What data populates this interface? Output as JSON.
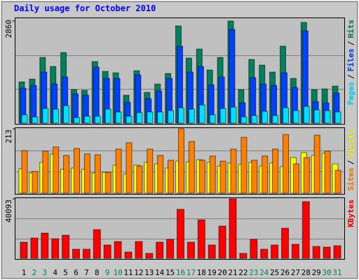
{
  "chart_data": [
    {
      "type": "bar",
      "title": "Daily usage for October 2010",
      "categories": [
        "1",
        "2",
        "3",
        "4",
        "5",
        "6",
        "7",
        "8",
        "9",
        "10",
        "11",
        "12",
        "13",
        "14",
        "15",
        "16",
        "17",
        "18",
        "19",
        "20",
        "21",
        "22",
        "23",
        "24",
        "25",
        "26",
        "27",
        "28",
        "29",
        "30",
        "31"
      ],
      "category_colors": [
        "#000000",
        "#00805c",
        "#00805c",
        "#000000",
        "#000000",
        "#000000",
        "#000000",
        "#000000",
        "#00805c",
        "#00805c",
        "#000000",
        "#000000",
        "#000000",
        "#000000",
        "#000000",
        "#00805c",
        "#00805c",
        "#000000",
        "#000000",
        "#000000",
        "#000000",
        "#000000",
        "#00805c",
        "#00805c",
        "#000000",
        "#000000",
        "#000000",
        "#000000",
        "#000000",
        "#00805c",
        "#00805c"
      ],
      "legend_separator": "/",
      "series": [
        {
          "name": "Hits",
          "color": "#00805c",
          "values": [
            1156,
            1234,
            1841,
            1587,
            1978,
            940,
            921,
            1724,
            1450,
            1410,
            784,
            1469,
            862,
            1097,
            1391,
            2723,
            1822,
            2076,
            1489,
            1841,
            2860,
            940,
            1783,
            1626,
            1430,
            2155,
            1254,
            2821,
            940,
            960,
            1038
          ]
        },
        {
          "name": "Files",
          "color": "#0040ff",
          "values": [
            979,
            1058,
            1430,
            1097,
            1293,
            823,
            784,
            1567,
            1254,
            1254,
            588,
            1352,
            686,
            901,
            1254,
            2155,
            1430,
            1587,
            1077,
            1293,
            2625,
            568,
            1273,
            1097,
            1058,
            1410,
            999,
            2586,
            607,
            568,
            842
          ]
        },
        {
          "name": "Pages",
          "color": "#00e0ff",
          "values": [
            235,
            176,
            411,
            392,
            490,
            157,
            196,
            196,
            392,
            313,
            196,
            294,
            313,
            313,
            353,
            431,
            392,
            509,
            235,
            411,
            451,
            176,
            215,
            333,
            215,
            431,
            353,
            470,
            372,
            353,
            313
          ]
        }
      ],
      "ylim": [
        0,
        2860
      ],
      "yticks": [
        2860
      ]
    },
    {
      "type": "bar",
      "series": [
        {
          "name": "Visits",
          "color": "#ffff00",
          "values": [
            81,
            67,
            102,
            130,
            79,
            83,
            79,
            67,
            69,
            93,
            63,
            93,
            102,
            97,
            83,
            106,
            104,
            111,
            102,
            90,
            100,
            95,
            102,
            90,
            100,
            88,
            118,
            134,
            125,
            132,
            97
          ]
        },
        {
          "name": "Sites",
          "color": "#ff8000",
          "values": [
            141,
            72,
            139,
            153,
            125,
            148,
            130,
            127,
            69,
            146,
            167,
            90,
            146,
            125,
            109,
            213,
            171,
            109,
            123,
            106,
            146,
            185,
            109,
            123,
            146,
            194,
            97,
            118,
            192,
            139,
            76
          ]
        }
      ],
      "ylim": [
        0,
        213
      ],
      "yticks": [
        213
      ]
    },
    {
      "type": "bar",
      "series": [
        {
          "name": "KBytes",
          "color": "#ff0000",
          "values": [
            10849,
            13679,
            16980,
            13207,
            15565,
            6132,
            6132,
            19339,
            8962,
            11320,
            4245,
            11320,
            3302,
            10849,
            12735,
            33018,
            10849,
            25942,
            8962,
            21697,
            40093,
            3302,
            12735,
            6132,
            8962,
            20282,
            9434,
            38206,
            8018,
            7547,
            8490
          ]
        }
      ],
      "ylim": [
        0,
        40093
      ],
      "yticks": [
        40093
      ]
    }
  ]
}
